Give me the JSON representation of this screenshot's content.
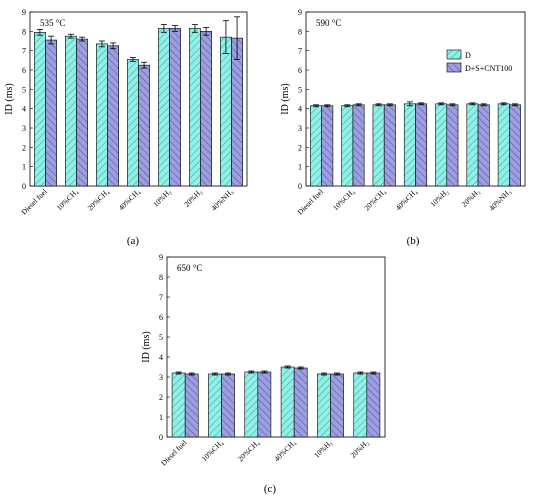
{
  "chart_data": [
    {
      "type": "bar",
      "panel": "(a)",
      "title": "535 °C",
      "ylabel": "ID (ms)",
      "ylim": [
        0,
        9
      ],
      "yticks": [
        0,
        1,
        2,
        3,
        4,
        5,
        6,
        7,
        8,
        9
      ],
      "categories": [
        "Diesel fuel",
        "10%CH₄",
        "20%CH₄",
        "40%CH₄",
        "10%H₂",
        "20%H₂",
        "40%NH₃"
      ],
      "series": [
        {
          "name": "D",
          "values": [
            7.95,
            7.75,
            7.35,
            6.55,
            8.15,
            8.15,
            7.7
          ],
          "errors": [
            0.15,
            0.1,
            0.15,
            0.1,
            0.2,
            0.2,
            0.85
          ]
        },
        {
          "name": "D+S+CNT100",
          "values": [
            7.55,
            7.6,
            7.25,
            6.25,
            8.15,
            8.0,
            7.65
          ],
          "errors": [
            0.2,
            0.1,
            0.15,
            0.15,
            0.15,
            0.2,
            1.1
          ]
        }
      ]
    },
    {
      "type": "bar",
      "panel": "(b)",
      "title": "590 °C",
      "ylabel": "ID (ms)",
      "ylim": [
        0,
        9
      ],
      "yticks": [
        0,
        1,
        2,
        3,
        4,
        5,
        6,
        7,
        8,
        9
      ],
      "legend": "top-right",
      "categories": [
        "Diesel fuel",
        "10%CH₄",
        "20%CH₄",
        "40%CH₄",
        "10%H₂",
        "20%H₂",
        "40%NH₃"
      ],
      "series": [
        {
          "name": "D",
          "values": [
            4.15,
            4.15,
            4.2,
            4.25,
            4.25,
            4.25,
            4.25
          ],
          "errors": [
            0.05,
            0.05,
            0.05,
            0.1,
            0.05,
            0.05,
            0.05
          ]
        },
        {
          "name": "D+S+CNT100",
          "values": [
            4.15,
            4.2,
            4.2,
            4.25,
            4.2,
            4.2,
            4.2
          ],
          "errors": [
            0.05,
            0.05,
            0.05,
            0.05,
            0.05,
            0.05,
            0.05
          ]
        }
      ]
    },
    {
      "type": "bar",
      "panel": "(c)",
      "title": "650 °C",
      "ylabel": "ID (ms)",
      "ylim": [
        0,
        9
      ],
      "yticks": [
        0,
        1,
        2,
        3,
        4,
        5,
        6,
        7,
        8,
        9
      ],
      "categories": [
        "Diesel fuel",
        "10%CH₄",
        "20%CH₄",
        "40%CH₄",
        "10%H₂",
        "20%H₂"
      ],
      "series": [
        {
          "name": "D",
          "values": [
            3.2,
            3.15,
            3.25,
            3.5,
            3.15,
            3.2
          ],
          "errors": [
            0.05,
            0.05,
            0.05,
            0.05,
            0.05,
            0.05
          ]
        },
        {
          "name": "D+S+CNT100",
          "values": [
            3.15,
            3.15,
            3.25,
            3.45,
            3.15,
            3.2
          ],
          "errors": [
            0.05,
            0.05,
            0.05,
            0.05,
            0.05,
            0.05
          ]
        }
      ]
    }
  ],
  "colors": {
    "D": "#8ff0e8",
    "D+S+CNT100": "#9c9ee0"
  }
}
